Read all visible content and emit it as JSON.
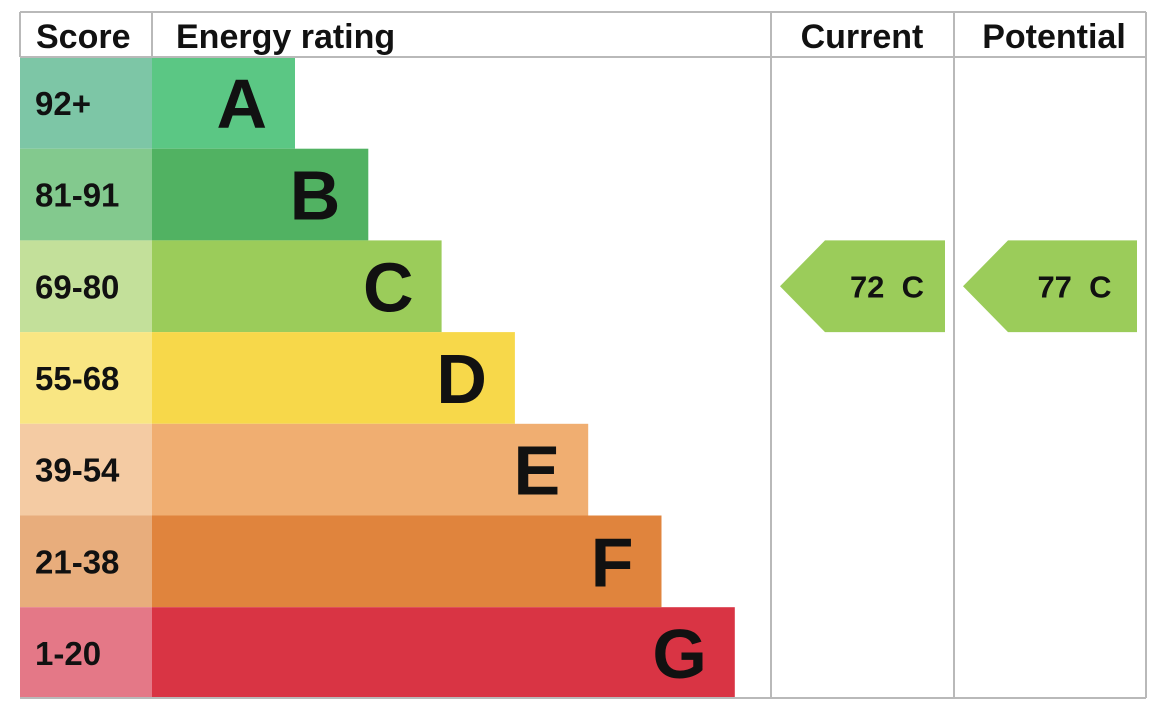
{
  "headers": {
    "score": "Score",
    "energy_rating": "Energy rating",
    "current": "Current",
    "potential": "Potential"
  },
  "chart_data": {
    "type": "bar",
    "bands": [
      {
        "letter": "A",
        "score_range": "92+",
        "color": "#5bc784",
        "score_color": "#7dc6a6"
      },
      {
        "letter": "B",
        "score_range": "81-91",
        "color": "#51b262",
        "score_color": "#83c98e"
      },
      {
        "letter": "C",
        "score_range": "69-80",
        "color": "#9bcc5a",
        "score_color": "#c3e09a"
      },
      {
        "letter": "D",
        "score_range": "55-68",
        "color": "#f7d84a",
        "score_color": "#f9e683"
      },
      {
        "letter": "E",
        "score_range": "39-54",
        "color": "#f0ae71",
        "score_color": "#f4cba3"
      },
      {
        "letter": "F",
        "score_range": "21-38",
        "color": "#e0843d",
        "score_color": "#e8ad7c"
      },
      {
        "letter": "G",
        "score_range": "1-20",
        "color": "#d93444",
        "score_color": "#e47887"
      }
    ],
    "current": {
      "value": 72,
      "band": "C",
      "label": "72  C",
      "color": "#9bcc5a"
    },
    "potential": {
      "value": 77,
      "band": "C",
      "label": "77  C",
      "color": "#9bcc5a"
    }
  }
}
